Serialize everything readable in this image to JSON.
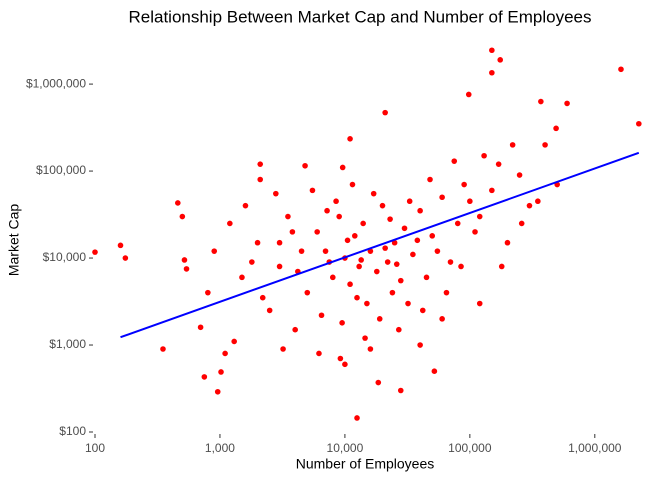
{
  "chart_data": {
    "type": "scatter",
    "title": "Relationship Between Market Cap and Number of Employees",
    "x_label": "Number of Employees",
    "y_label": "Market Cap",
    "color": "#ff0000",
    "log_x": true,
    "log_y": true,
    "grid": false,
    "xlim": [
      100,
      2300000
    ],
    "ylim": [
      100,
      2600000
    ],
    "xticks": [
      100,
      {
        "value": 1000,
        "label": "1,000"
      },
      {
        "value": 10000,
        "label": "10,000"
      },
      {
        "value": 100000,
        "label": "100,000"
      },
      {
        "value": 1000000,
        "label": "1,000,000"
      }
    ],
    "yticks": [
      {
        "value": 100,
        "label": "$100"
      },
      {
        "value": 1000,
        "label": "$1,000"
      },
      {
        "value": 10000,
        "label": "$10,000"
      },
      {
        "value": 100000,
        "label": "$100,000"
      },
      {
        "value": 1000000,
        "label": "$1,000,000"
      }
    ],
    "x": [
      100,
      160,
      175,
      350,
      460,
      500,
      520,
      540,
      750,
      960,
      1020,
      2100,
      4800,
      9600,
      11000,
      12500,
      18500,
      21000,
      52000,
      98000,
      150000,
      175000,
      150000,
      370000,
      490000,
      1620000,
      2250000,
      2000,
      3000,
      5000,
      6000,
      7000,
      8000,
      9000,
      10000,
      11000,
      12000,
      13000,
      14000,
      15000,
      16000,
      18000,
      20000,
      22000,
      25000,
      28000,
      30000,
      35000,
      40000,
      45000,
      50000,
      60000,
      70000,
      80000,
      90000,
      120000,
      150000,
      200000,
      250000,
      300000,
      400000,
      500000,
      1500,
      2500,
      3500,
      4000,
      4500,
      5500,
      6500,
      7500,
      8500,
      9500,
      10500,
      11500,
      12500,
      13500,
      14500,
      17000,
      19000,
      21000,
      23000,
      24000,
      26000,
      27000,
      32000,
      33000,
      38000,
      42000,
      48000,
      55000,
      65000,
      75000,
      85000,
      100000,
      110000,
      130000,
      180000,
      220000,
      260000,
      350000,
      700,
      800,
      1200,
      1800,
      2200,
      2800,
      3200,
      3800,
      4200,
      6200,
      7200,
      9200,
      10000,
      16000,
      28000,
      40000,
      60000,
      120000,
      170000,
      600000,
      900,
      1100,
      1300,
      1600,
      2100,
      3000
    ],
    "values": [
      11700,
      14000,
      10000,
      900,
      43000,
      30000,
      9500,
      7500,
      430,
      290,
      490,
      120000,
      115000,
      110000,
      235000,
      145,
      370,
      470000,
      500,
      760000,
      2450000,
      1900000,
      1350000,
      630000,
      310000,
      1480000,
      350000,
      15000,
      8000,
      4000,
      20000,
      12000,
      6000,
      30000,
      10000,
      5000,
      18000,
      8000,
      25000,
      3000,
      12000,
      7000,
      40000,
      9000,
      15000,
      5500,
      22000,
      11000,
      35000,
      6000,
      18000,
      50000,
      9000,
      25000,
      70000,
      30000,
      60000,
      15000,
      90000,
      40000,
      200000,
      70000,
      6000,
      2500,
      30000,
      1500,
      12000,
      60000,
      2200,
      9000,
      45000,
      1800,
      16000,
      70000,
      3500,
      9500,
      1200,
      55000,
      2000,
      13000,
      28000,
      4000,
      8500,
      1500,
      3000,
      45000,
      16000,
      2500,
      80000,
      12000,
      4000,
      130000,
      8000,
      45000,
      20000,
      150000,
      8000,
      200000,
      25000,
      45000,
      1600,
      4000,
      25000,
      9000,
      3500,
      55000,
      900,
      20000,
      7000,
      800,
      35000,
      700,
      600,
      900,
      300,
      1000,
      2000,
      3000,
      120000,
      600000,
      12000,
      800,
      1100,
      40000,
      80000,
      15000
    ],
    "trend": {
      "x": [
        160,
        2250000
      ],
      "values": [
        1230,
        162000
      ],
      "color": "#0000ff"
    }
  }
}
